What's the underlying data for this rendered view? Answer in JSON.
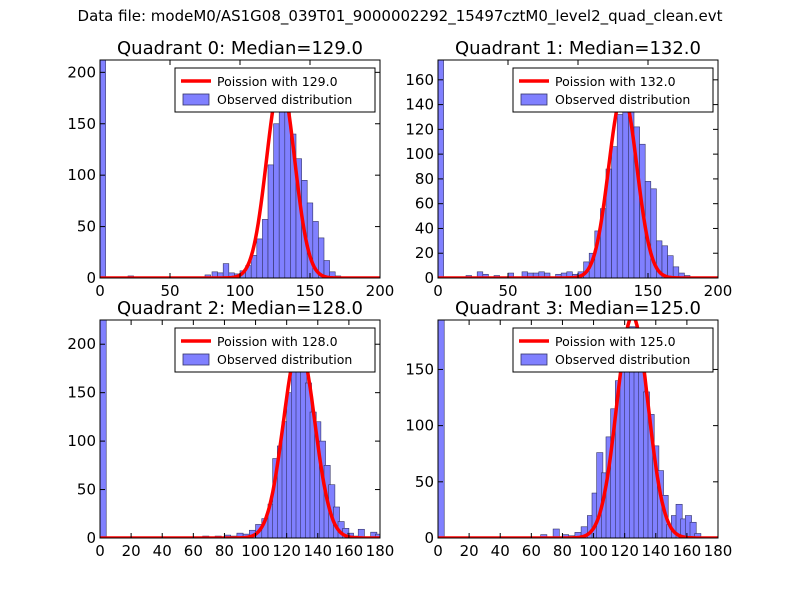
{
  "figure_title": "Data file: modeM0/AS1G08_039T01_9000002292_15497cztM0_level2_quad_clean.evt",
  "colors": {
    "fit_line": "#ff0000",
    "bar_fill": "#8080ff",
    "bar_edge": "#333366",
    "axis": "#000000"
  },
  "chart_data": [
    {
      "type": "bar",
      "title": "Quadrant 0: Median=129.0",
      "xlim": [
        0,
        200
      ],
      "ylim": [
        0,
        212
      ],
      "xticks": [
        0,
        50,
        100,
        150,
        200
      ],
      "yticks": [
        0,
        50,
        100,
        150,
        200
      ],
      "legend": {
        "location": "top-right",
        "entries": [
          "Poission with 129.0",
          "Observed distribution"
        ]
      },
      "median": 129.0,
      "bins": [
        {
          "x": 0,
          "v": 212
        },
        {
          "x": 20,
          "v": 2
        },
        {
          "x": 65,
          "v": 1
        },
        {
          "x": 75,
          "v": 3
        },
        {
          "x": 80,
          "v": 6
        },
        {
          "x": 84,
          "v": 5
        },
        {
          "x": 88,
          "v": 14
        },
        {
          "x": 92,
          "v": 5
        },
        {
          "x": 96,
          "v": 4
        },
        {
          "x": 100,
          "v": 7
        },
        {
          "x": 104,
          "v": 12
        },
        {
          "x": 108,
          "v": 22
        },
        {
          "x": 112,
          "v": 38
        },
        {
          "x": 116,
          "v": 57
        },
        {
          "x": 120,
          "v": 110
        },
        {
          "x": 124,
          "v": 150
        },
        {
          "x": 128,
          "v": 182
        },
        {
          "x": 132,
          "v": 162
        },
        {
          "x": 136,
          "v": 140
        },
        {
          "x": 140,
          "v": 116
        },
        {
          "x": 144,
          "v": 95
        },
        {
          "x": 148,
          "v": 73
        },
        {
          "x": 152,
          "v": 55
        },
        {
          "x": 156,
          "v": 39
        },
        {
          "x": 160,
          "v": 17
        },
        {
          "x": 164,
          "v": 6
        },
        {
          "x": 168,
          "v": 2
        },
        {
          "x": 172,
          "v": 1
        }
      ]
    },
    {
      "type": "bar",
      "title": "Quadrant 1: Median=132.0",
      "xlim": [
        0,
        200
      ],
      "ylim": [
        0,
        176
      ],
      "xticks": [
        0,
        50,
        100,
        150,
        200
      ],
      "yticks": [
        0,
        20,
        40,
        60,
        80,
        100,
        120,
        140,
        160
      ],
      "legend": {
        "location": "top-right",
        "entries": [
          "Poission with 132.0",
          "Observed distribution"
        ]
      },
      "median": 132.0,
      "bins": [
        {
          "x": 0,
          "v": 176
        },
        {
          "x": 20,
          "v": 2
        },
        {
          "x": 28,
          "v": 5
        },
        {
          "x": 32,
          "v": 3
        },
        {
          "x": 40,
          "v": 2
        },
        {
          "x": 50,
          "v": 4
        },
        {
          "x": 60,
          "v": 5
        },
        {
          "x": 64,
          "v": 4
        },
        {
          "x": 68,
          "v": 4
        },
        {
          "x": 72,
          "v": 5
        },
        {
          "x": 76,
          "v": 4
        },
        {
          "x": 84,
          "v": 3
        },
        {
          "x": 88,
          "v": 4
        },
        {
          "x": 92,
          "v": 5
        },
        {
          "x": 96,
          "v": 3
        },
        {
          "x": 100,
          "v": 5
        },
        {
          "x": 104,
          "v": 13
        },
        {
          "x": 108,
          "v": 20
        },
        {
          "x": 112,
          "v": 38
        },
        {
          "x": 116,
          "v": 56
        },
        {
          "x": 120,
          "v": 88
        },
        {
          "x": 124,
          "v": 106
        },
        {
          "x": 128,
          "v": 132
        },
        {
          "x": 132,
          "v": 142
        },
        {
          "x": 136,
          "v": 138
        },
        {
          "x": 140,
          "v": 122
        },
        {
          "x": 144,
          "v": 108
        },
        {
          "x": 148,
          "v": 78
        },
        {
          "x": 152,
          "v": 72
        },
        {
          "x": 156,
          "v": 30
        },
        {
          "x": 160,
          "v": 26
        },
        {
          "x": 164,
          "v": 18
        },
        {
          "x": 168,
          "v": 9
        },
        {
          "x": 172,
          "v": 4
        },
        {
          "x": 176,
          "v": 2
        }
      ]
    },
    {
      "type": "bar",
      "title": "Quadrant 2: Median=128.0",
      "xlim": [
        0,
        180
      ],
      "ylim": [
        0,
        225
      ],
      "xticks": [
        0,
        20,
        40,
        60,
        80,
        100,
        120,
        140,
        160,
        180
      ],
      "yticks": [
        0,
        50,
        100,
        150,
        200
      ],
      "legend": {
        "location": "top-right",
        "entries": [
          "Poission with 128.0",
          "Observed distribution"
        ]
      },
      "median": 128.0,
      "bins": [
        {
          "x": 0,
          "v": 225
        },
        {
          "x": 66,
          "v": 2
        },
        {
          "x": 74,
          "v": 2
        },
        {
          "x": 80,
          "v": 3
        },
        {
          "x": 84,
          "v": 2
        },
        {
          "x": 88,
          "v": 5
        },
        {
          "x": 92,
          "v": 4
        },
        {
          "x": 96,
          "v": 8
        },
        {
          "x": 100,
          "v": 14
        },
        {
          "x": 104,
          "v": 20
        },
        {
          "x": 108,
          "v": 35
        },
        {
          "x": 111,
          "v": 82
        },
        {
          "x": 114,
          "v": 95
        },
        {
          "x": 117,
          "v": 120
        },
        {
          "x": 120,
          "v": 150
        },
        {
          "x": 123,
          "v": 175
        },
        {
          "x": 126,
          "v": 190
        },
        {
          "x": 129,
          "v": 178
        },
        {
          "x": 132,
          "v": 160
        },
        {
          "x": 135,
          "v": 130
        },
        {
          "x": 138,
          "v": 120
        },
        {
          "x": 141,
          "v": 100
        },
        {
          "x": 144,
          "v": 75
        },
        {
          "x": 147,
          "v": 55
        },
        {
          "x": 150,
          "v": 32
        },
        {
          "x": 153,
          "v": 17
        },
        {
          "x": 156,
          "v": 10
        },
        {
          "x": 159,
          "v": 5
        },
        {
          "x": 162,
          "v": 2
        },
        {
          "x": 166,
          "v": 9
        },
        {
          "x": 174,
          "v": 6
        },
        {
          "x": 177,
          "v": 4
        }
      ]
    },
    {
      "type": "bar",
      "title": "Quadrant 3: Median=125.0",
      "xlim": [
        0,
        180
      ],
      "ylim": [
        0,
        194
      ],
      "xticks": [
        0,
        20,
        40,
        60,
        80,
        100,
        120,
        140,
        160,
        180
      ],
      "yticks": [
        0,
        50,
        100,
        150
      ],
      "legend": {
        "location": "top-right",
        "entries": [
          "Poission with 125.0",
          "Observed distribution"
        ]
      },
      "median": 125.0,
      "bins": [
        {
          "x": 0,
          "v": 194
        },
        {
          "x": 66,
          "v": 3
        },
        {
          "x": 74,
          "v": 8
        },
        {
          "x": 80,
          "v": 3
        },
        {
          "x": 84,
          "v": 2
        },
        {
          "x": 88,
          "v": 5
        },
        {
          "x": 92,
          "v": 10
        },
        {
          "x": 96,
          "v": 20
        },
        {
          "x": 99,
          "v": 40
        },
        {
          "x": 102,
          "v": 76
        },
        {
          "x": 105,
          "v": 58
        },
        {
          "x": 108,
          "v": 90
        },
        {
          "x": 111,
          "v": 115
        },
        {
          "x": 114,
          "v": 140
        },
        {
          "x": 117,
          "v": 158
        },
        {
          "x": 120,
          "v": 175
        },
        {
          "x": 123,
          "v": 188
        },
        {
          "x": 126,
          "v": 180
        },
        {
          "x": 129,
          "v": 163
        },
        {
          "x": 132,
          "v": 130
        },
        {
          "x": 135,
          "v": 110
        },
        {
          "x": 138,
          "v": 82
        },
        {
          "x": 141,
          "v": 60
        },
        {
          "x": 144,
          "v": 38
        },
        {
          "x": 147,
          "v": 12
        },
        {
          "x": 150,
          "v": 20
        },
        {
          "x": 153,
          "v": 30
        },
        {
          "x": 156,
          "v": 17
        },
        {
          "x": 159,
          "v": 20
        },
        {
          "x": 162,
          "v": 14
        },
        {
          "x": 165,
          "v": 4
        }
      ]
    }
  ]
}
